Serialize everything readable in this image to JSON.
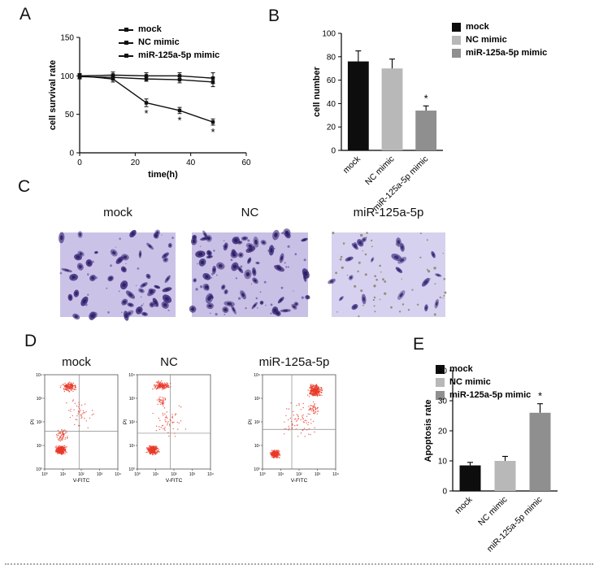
{
  "figure": {
    "background": "#ffffff",
    "panels": {
      "a": {
        "label": "A"
      },
      "b": {
        "label": "B"
      },
      "c": {
        "label": "C"
      },
      "d": {
        "label": "D"
      },
      "e": {
        "label": "E"
      }
    }
  },
  "colors": {
    "black_bar": "#0d0d0d",
    "light_gray_bar": "#b8b8b8",
    "dark_gray_bar": "#8f8f8f",
    "flow_dot": "#e83a28",
    "axis": "#000000"
  },
  "chart_data": [
    {
      "id": "cell-survival",
      "type": "line",
      "title": "",
      "xlabel": "time(h)",
      "ylabel": "cell survival rate",
      "xlim": [
        0,
        60
      ],
      "ylim": [
        0,
        150
      ],
      "xticks": [
        0,
        20,
        40,
        60
      ],
      "yticks": [
        0,
        50,
        100,
        150
      ],
      "x": [
        0,
        12,
        24,
        36,
        48
      ],
      "legend_position": "top-left",
      "series": [
        {
          "name": "mock",
          "color": "#111111",
          "values": [
            100,
            101,
            100,
            100,
            97
          ],
          "errors": [
            3,
            4,
            4,
            4,
            7
          ],
          "sig": [
            "",
            "",
            "",
            "",
            ""
          ]
        },
        {
          "name": "NC mimic",
          "color": "#111111",
          "values": [
            99,
            98,
            96,
            95,
            92
          ],
          "errors": [
            3,
            3,
            3,
            4,
            6
          ],
          "sig": [
            "",
            "",
            "",
            "",
            ""
          ]
        },
        {
          "name": "miR-125a-5p mimic",
          "color": "#111111",
          "values": [
            100,
            96,
            65,
            55,
            40
          ],
          "errors": [
            3,
            4,
            5,
            4,
            4
          ],
          "sig": [
            "",
            "",
            "*",
            "*",
            "*"
          ]
        }
      ]
    },
    {
      "id": "cell-number",
      "type": "bar",
      "title": "",
      "ylabel": "cell number",
      "ylim": [
        0,
        100
      ],
      "yticks": [
        0,
        20,
        40,
        60,
        80,
        100
      ],
      "categories": [
        "mock",
        "NC mimic",
        "miR-125a-5p mimic"
      ],
      "values": [
        76,
        70,
        34
      ],
      "errors": [
        9,
        8,
        4
      ],
      "sig": [
        "",
        "",
        "*"
      ],
      "colors": [
        "#0d0d0d",
        "#b8b8b8",
        "#8f8f8f"
      ],
      "legend_position": "top-right"
    },
    {
      "id": "apoptosis-rate",
      "type": "bar",
      "title": "",
      "ylabel": "Apoptosis rate",
      "ylim": [
        0,
        40
      ],
      "yticks": [
        0,
        10,
        20,
        30,
        40
      ],
      "categories": [
        "mock",
        "NC mimic",
        "miR-125a-5p mimic"
      ],
      "values": [
        8.5,
        10,
        26
      ],
      "errors": [
        1,
        1.5,
        3
      ],
      "sig": [
        "",
        "",
        "*"
      ],
      "colors": [
        "#0d0d0d",
        "#b8b8b8",
        "#8f8f8f"
      ],
      "legend_position": "top-left"
    },
    {
      "id": "flow-mock",
      "type": "scatter",
      "title": "mock",
      "xlabel": "V-FITC",
      "ylabel": "PI",
      "tick_labels": [
        "10⁰",
        "10¹",
        "10²",
        "10³",
        "10⁴"
      ],
      "dot_color": "#e83a28",
      "quadrant": {
        "vx": 0.47,
        "hy": 0.6
      },
      "seed": 101,
      "clusters": [
        {
          "cx": 0.22,
          "cy": 0.8,
          "rx": 0.1,
          "ry": 0.06,
          "n": 300
        },
        {
          "cx": 0.24,
          "cy": 0.64,
          "rx": 0.1,
          "ry": 0.09,
          "n": 60
        },
        {
          "cx": 0.33,
          "cy": 0.13,
          "rx": 0.13,
          "ry": 0.06,
          "n": 150
        },
        {
          "cx": 0.45,
          "cy": 0.42,
          "rx": 0.28,
          "ry": 0.22,
          "n": 45
        }
      ]
    },
    {
      "id": "flow-nc",
      "type": "scatter",
      "title": "NC",
      "xlabel": "V-FITC",
      "ylabel": "PI",
      "tick_labels": [
        "10⁰",
        "10¹",
        "10²",
        "10³",
        "10⁴"
      ],
      "dot_color": "#e83a28",
      "quadrant": {
        "vx": 0.45,
        "hy": 0.62
      },
      "seed": 202,
      "clusters": [
        {
          "cx": 0.21,
          "cy": 0.8,
          "rx": 0.1,
          "ry": 0.06,
          "n": 280
        },
        {
          "cx": 0.34,
          "cy": 0.12,
          "rx": 0.15,
          "ry": 0.06,
          "n": 160
        },
        {
          "cx": 0.34,
          "cy": 0.28,
          "rx": 0.1,
          "ry": 0.08,
          "n": 35
        },
        {
          "cx": 0.45,
          "cy": 0.5,
          "rx": 0.28,
          "ry": 0.24,
          "n": 55
        }
      ]
    },
    {
      "id": "flow-mir",
      "type": "scatter",
      "title": "miR-125a-5p",
      "xlabel": "V-FITC",
      "ylabel": "PI",
      "tick_labels": [
        "10⁰",
        "10¹",
        "10²",
        "10³",
        "10⁴"
      ],
      "dot_color": "#e83a28",
      "quadrant": {
        "vx": 0.4,
        "hy": 0.58
      },
      "seed": 303,
      "clusters": [
        {
          "cx": 0.17,
          "cy": 0.84,
          "rx": 0.08,
          "ry": 0.05,
          "n": 260
        },
        {
          "cx": 0.72,
          "cy": 0.17,
          "rx": 0.12,
          "ry": 0.08,
          "n": 280
        },
        {
          "cx": 0.5,
          "cy": 0.5,
          "rx": 0.3,
          "ry": 0.26,
          "n": 70
        },
        {
          "cx": 0.7,
          "cy": 0.36,
          "rx": 0.1,
          "ry": 0.08,
          "n": 45
        }
      ]
    }
  ],
  "microscopy": {
    "images": [
      {
        "name": "mock",
        "bg": "#cbc3e7",
        "cell_color": "#402e80",
        "nucleus_color": "#2c1d5e",
        "cells": 50,
        "debris": 28,
        "debris_color": "#6a5aa8",
        "seed": 7
      },
      {
        "name": "NC",
        "bg": "#c8c0e5",
        "cell_color": "#3c2a7a",
        "nucleus_color": "#281a58",
        "cells": 62,
        "debris": 46,
        "debris_color": "#5d4d9e",
        "seed": 13
      },
      {
        "name": "miR-125a-5p",
        "bg": "#d6d1ee",
        "cell_color": "#4a3a8c",
        "nucleus_color": "#332566",
        "cells": 22,
        "debris": 60,
        "debris_color": "#7a6f52",
        "seed": 29
      }
    ]
  }
}
